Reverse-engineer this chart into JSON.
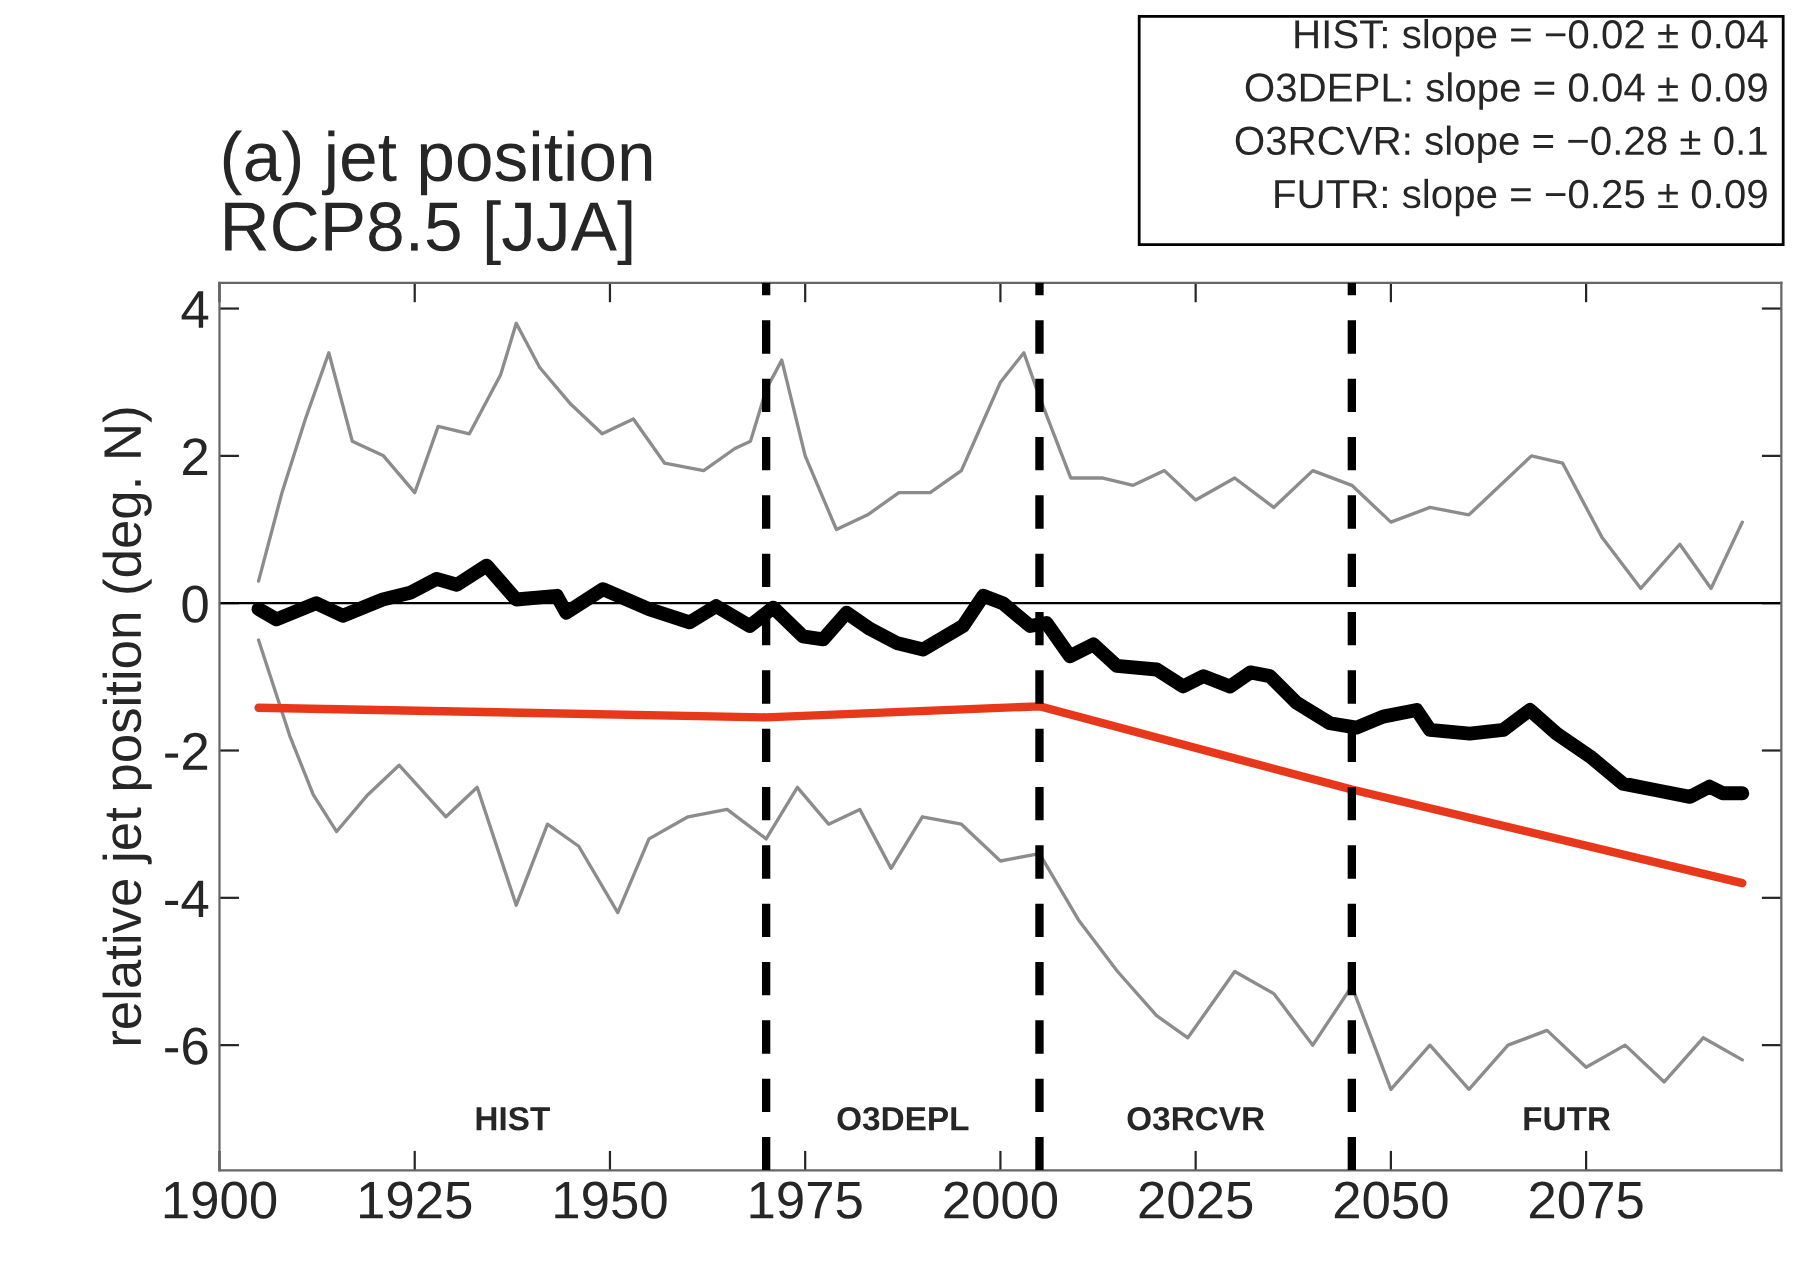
{
  "chart_data": {
    "type": "line",
    "title": "(a) jet position\nRCP8.5 [JJA]",
    "ylabel": "relative jet position (deg. N)",
    "xlim": [
      1900,
      2100
    ],
    "xticks": [
      1900,
      1925,
      1950,
      1975,
      2000,
      2025,
      2050,
      2075
    ],
    "ylim": [
      -7.7,
      4.35
    ],
    "yticks": [
      -6,
      -4,
      -2,
      0,
      2,
      4
    ],
    "grid": false,
    "series": [
      {
        "color": "#8c8c8c",
        "x": [
          1905,
          1908,
          1911,
          1914,
          1917,
          1921,
          1925,
          1928,
          1932,
          1936,
          1938,
          1941,
          1945,
          1949,
          1953,
          1957,
          1962,
          1966,
          1968,
          1970,
          1972,
          1975,
          1979,
          1983,
          1987,
          1991,
          1995,
          2000,
          2003,
          2005,
          2009,
          2013,
          2017,
          2021,
          2025,
          2030,
          2035,
          2040,
          2045,
          2050,
          2055,
          2060,
          2065,
          2068,
          2072,
          2077,
          2082,
          2087,
          2091,
          2095
        ],
        "values": [
          0.3,
          1.5,
          2.5,
          3.4,
          2.2,
          2.0,
          1.5,
          2.4,
          2.3,
          3.1,
          3.8,
          3.2,
          2.7,
          2.3,
          2.5,
          1.9,
          1.8,
          2.1,
          2.2,
          2.9,
          3.3,
          2.0,
          1.0,
          1.2,
          1.5,
          1.5,
          1.8,
          3.0,
          3.4,
          2.8,
          1.7,
          1.7,
          1.6,
          1.8,
          1.4,
          1.7,
          1.3,
          1.8,
          1.6,
          1.1,
          1.3,
          1.2,
          1.7,
          2.0,
          1.9,
          0.9,
          0.2,
          0.8,
          0.2,
          1.1
        ]
      },
      {
        "color": "#8c8c8c",
        "x": [
          1905,
          1909,
          1912,
          1915,
          1919,
          1923,
          1929,
          1933,
          1938,
          1942,
          1946,
          1951,
          1955,
          1960,
          1965,
          1970,
          1974,
          1978,
          1982,
          1986,
          1990,
          1995,
          2000,
          2005,
          2010,
          2015,
          2020,
          2024,
          2030,
          2035,
          2040,
          2045,
          2050,
          2055,
          2060,
          2065,
          2070,
          2075,
          2080,
          2085,
          2090,
          2095
        ],
        "values": [
          -0.5,
          -1.8,
          -2.6,
          -3.1,
          -2.6,
          -2.2,
          -2.9,
          -2.5,
          -4.1,
          -3.0,
          -3.3,
          -4.2,
          -3.2,
          -2.9,
          -2.8,
          -3.2,
          -2.5,
          -3.0,
          -2.8,
          -3.6,
          -2.9,
          -3.0,
          -3.5,
          -3.4,
          -4.3,
          -5.0,
          -5.6,
          -5.9,
          -5.0,
          -5.3,
          -6.0,
          -5.2,
          -6.6,
          -6.0,
          -6.6,
          -6.0,
          -5.8,
          -6.3,
          -6.0,
          -6.5,
          -5.9,
          -6.2
        ]
      },
      {
        "color": "#000000",
        "x": [
          1905,
          1907.3,
          1912.4,
          1915.8,
          1920.9,
          1924.4,
          1927.8,
          1930.4,
          1934.2,
          1938,
          1943.2,
          1944.4,
          1949.1,
          1955,
          1960.2,
          1963.6,
          1967.9,
          1970.9,
          1974.7,
          1977.3,
          1980.3,
          1983.3,
          1986.7,
          1990.1,
          1995.2,
          1997.8,
          2000.3,
          2003.8,
          2005.9,
          2008.9,
          2011.9,
          2014.9,
          2020,
          2023.4,
          2026,
          2029.4,
          2032,
          2034.5,
          2037.9,
          2042.2,
          2045.6,
          2049,
          2053.3,
          2055,
          2060.1,
          2064.4,
          2067.8,
          2071.2,
          2075.5,
          2079.7,
          2084,
          2088.3,
          2090.8,
          2092.5,
          2095
        ],
        "values": [
          -0.08,
          -0.22,
          0,
          -0.17,
          0.05,
          0.14,
          0.33,
          0.25,
          0.51,
          0.05,
          0.1,
          -0.13,
          0.19,
          -0.08,
          -0.26,
          -0.04,
          -0.31,
          -0.06,
          -0.45,
          -0.49,
          -0.13,
          -0.35,
          -0.54,
          -0.63,
          -0.31,
          0.1,
          0.0,
          -0.31,
          -0.27,
          -0.72,
          -0.56,
          -0.85,
          -0.9,
          -1.13,
          -0.99,
          -1.13,
          -0.94,
          -0.99,
          -1.35,
          -1.63,
          -1.69,
          -1.54,
          -1.45,
          -1.72,
          -1.77,
          -1.72,
          -1.45,
          -1.77,
          -2.08,
          -2.45,
          -2.54,
          -2.63,
          -2.49,
          -2.58,
          -2.58
        ]
      },
      {
        "color": "#e8381c",
        "x": [
          1905,
          1970,
          2005,
          2045,
          2095
        ],
        "values": [
          -1.42,
          -1.55,
          -1.4,
          -2.53,
          -3.8
        ]
      }
    ],
    "ref_lines": [
      {
        "axis": "y",
        "value": 0,
        "color": "#000000",
        "line_style": "solid"
      },
      {
        "axis": "x",
        "value": 1970,
        "color": "#000000",
        "line_style": "dashed"
      },
      {
        "axis": "x",
        "value": 2005,
        "color": "#000000",
        "line_style": "dashed"
      },
      {
        "axis": "x",
        "value": 2045,
        "color": "#000000",
        "line_style": "dashed"
      }
    ],
    "annotations": [
      "HIST",
      "O3DEPL",
      "O3RCVR",
      "FUTR",
      "HIST: slope = −0.02 ± 0.04",
      "O3DEPL: slope = 0.04 ± 0.09",
      "O3RCVR: slope = −0.28 ± 0.1",
      "FUTR: slope = −0.25 ± 0.09"
    ]
  }
}
